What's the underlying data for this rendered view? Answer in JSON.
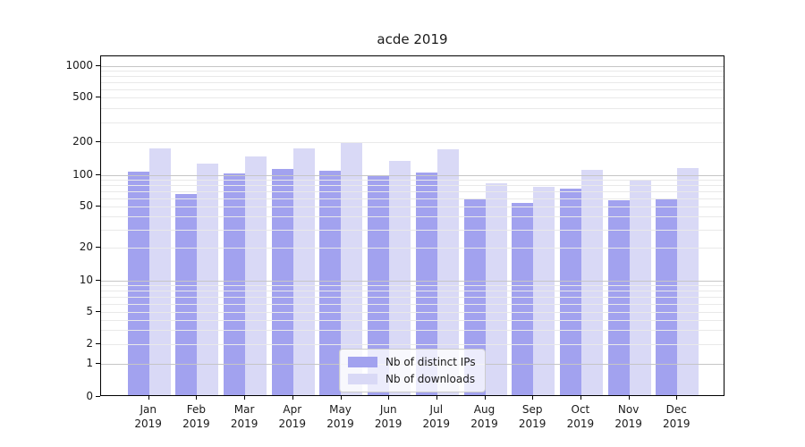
{
  "chart_data": {
    "type": "bar",
    "title": "acde 2019",
    "categories": [
      "Jan 2019",
      "Feb 2019",
      "Mar 2019",
      "Apr 2019",
      "May 2019",
      "Jun 2019",
      "Jul 2019",
      "Aug 2019",
      "Sep 2019",
      "Oct 2019",
      "Nov 2019",
      "Dec 2019"
    ],
    "series": [
      {
        "name": "Nb of distinct IPs",
        "color": "#a2a2ef",
        "values": [
          104,
          64,
          100,
          110,
          106,
          95,
          102,
          57,
          52,
          72,
          55,
          56
        ]
      },
      {
        "name": "Nb of downloads",
        "color": "#d9d9f6",
        "values": [
          170,
          122,
          142,
          169,
          190,
          130,
          165,
          81,
          75,
          107,
          87,
          111
        ]
      }
    ],
    "xlabel": "",
    "ylabel": "",
    "yscale": "symlog",
    "ylim": [
      0,
      1200
    ],
    "yticks": [
      0,
      1,
      2,
      5,
      10,
      20,
      50,
      100,
      200,
      500,
      1000
    ],
    "minor_grid_values": [
      2,
      3,
      4,
      5,
      6,
      7,
      8,
      9,
      20,
      30,
      40,
      50,
      60,
      70,
      80,
      90,
      200,
      300,
      400,
      500,
      600,
      700,
      800,
      900
    ],
    "major_grid_values": [
      1,
      10,
      100,
      1000
    ],
    "grid": {
      "orientation": "horizontal",
      "major": true,
      "minor": true,
      "drawn_over_bars": true
    },
    "legend": {
      "position": "lower center",
      "labels": [
        "Nb of distinct IPs",
        "Nb of downloads"
      ]
    }
  },
  "colors": {
    "background": "#ffffff",
    "spine": "#000000",
    "text": "#1a1a1a",
    "major_grid": "#c6c6c6",
    "minor_grid": "#e9e9e9",
    "legend_border": "#cccccc"
  }
}
